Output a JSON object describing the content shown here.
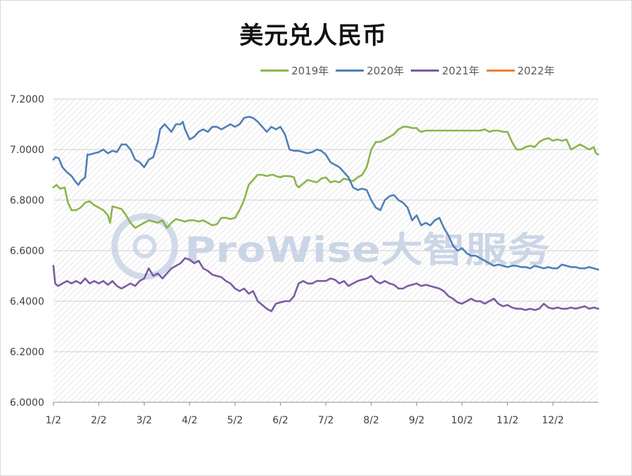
{
  "colors": {
    "s2019": "#8ab54a",
    "s2020": "#4f7fb8",
    "s2021": "#7b5ba3",
    "s2022": "#ed7d31"
  },
  "watermark": "ProWise大智服务",
  "chart_data": {
    "type": "line",
    "title": "美元兑人民币",
    "xlabel": "",
    "ylabel": "",
    "ylim": [
      6.0,
      7.2
    ],
    "yticks": [
      "6.0000",
      "6.2000",
      "6.4000",
      "6.6000",
      "6.8000",
      "7.0000",
      "7.2000"
    ],
    "xticks": [
      "1/2",
      "2/2",
      "3/2",
      "4/2",
      "5/2",
      "6/2",
      "7/2",
      "8/2",
      "9/2",
      "10/2",
      "11/2",
      "12/2"
    ],
    "x_domain": [
      0,
      12
    ],
    "x_unit": "month (0 = Jan 2, 12 = end of Dec)",
    "grid": true,
    "legend_position": "top",
    "series": [
      {
        "name": "2019年",
        "color_key": "s2019",
        "x": [
          0,
          0.07,
          0.15,
          0.25,
          0.32,
          0.4,
          0.5,
          0.6,
          0.7,
          0.8,
          0.9,
          1.0,
          1.1,
          1.2,
          1.25,
          1.3,
          1.4,
          1.5,
          1.6,
          1.7,
          1.8,
          1.9,
          2.0,
          2.1,
          2.2,
          2.3,
          2.4,
          2.5,
          2.6,
          2.7,
          2.8,
          2.9,
          3.0,
          3.1,
          3.2,
          3.3,
          3.4,
          3.5,
          3.6,
          3.7,
          3.8,
          3.9,
          4.0,
          4.1,
          4.2,
          4.3,
          4.4,
          4.5,
          4.6,
          4.7,
          4.8,
          4.85,
          4.9,
          5.0,
          5.05,
          5.1,
          5.2,
          5.3,
          5.35,
          5.4,
          5.5,
          5.6,
          5.7,
          5.8,
          5.9,
          6.0,
          6.1,
          6.2,
          6.3,
          6.4,
          6.5,
          6.6,
          6.7,
          6.8,
          6.9,
          7.0,
          7.1,
          7.2,
          7.3,
          7.4,
          7.5,
          7.6,
          7.7,
          7.8,
          7.9,
          8.0,
          8.05,
          8.1,
          8.2,
          8.3,
          8.4,
          8.5,
          8.6,
          8.7,
          8.8,
          8.9,
          9.0,
          9.1,
          9.2,
          9.3,
          9.4,
          9.5,
          9.6,
          9.7,
          9.8,
          9.9,
          10.0,
          10.1,
          10.2,
          10.3,
          10.4,
          10.5,
          10.6,
          10.7,
          10.8,
          10.9,
          11.0,
          11.1,
          11.2,
          11.3,
          11.4,
          11.5,
          11.6,
          11.7,
          11.8,
          11.9,
          11.95,
          12.0
        ],
        "y": [
          6.85,
          6.86,
          6.845,
          6.85,
          6.79,
          6.76,
          6.76,
          6.77,
          6.79,
          6.795,
          6.78,
          6.77,
          6.76,
          6.74,
          6.71,
          6.775,
          6.77,
          6.765,
          6.74,
          6.71,
          6.69,
          6.7,
          6.71,
          6.72,
          6.715,
          6.71,
          6.72,
          6.69,
          6.71,
          6.725,
          6.72,
          6.715,
          6.72,
          6.72,
          6.715,
          6.72,
          6.71,
          6.7,
          6.705,
          6.73,
          6.73,
          6.725,
          6.73,
          6.76,
          6.8,
          6.86,
          6.88,
          6.9,
          6.9,
          6.895,
          6.9,
          6.9,
          6.895,
          6.89,
          6.895,
          6.895,
          6.895,
          6.89,
          6.86,
          6.85,
          6.865,
          6.88,
          6.875,
          6.87,
          6.885,
          6.89,
          6.87,
          6.875,
          6.87,
          6.885,
          6.88,
          6.875,
          6.89,
          6.9,
          6.93,
          7.0,
          7.03,
          7.03,
          7.04,
          7.05,
          7.06,
          7.08,
          7.09,
          7.09,
          7.085,
          7.085,
          7.075,
          7.07,
          7.075,
          7.075,
          7.075,
          7.075,
          7.075,
          7.075,
          7.075,
          7.075,
          7.075,
          7.075,
          7.075,
          7.075,
          7.075,
          7.08,
          7.07,
          7.075,
          7.075,
          7.07,
          7.07,
          7.03,
          7.0,
          7.0,
          7.01,
          7.015,
          7.01,
          7.03,
          7.04,
          7.045,
          7.035,
          7.04,
          7.035,
          7.04,
          7.0,
          7.01,
          7.02,
          7.01,
          7.0,
          7.01,
          6.985,
          6.98
        ],
        "clip_last": 11.97
      },
      {
        "name": "2020年",
        "color_key": "s2020",
        "x": [
          0,
          0.05,
          0.12,
          0.2,
          0.3,
          0.4,
          0.5,
          0.55,
          0.6,
          0.7,
          0.75,
          0.8,
          0.9,
          1.0,
          1.1,
          1.2,
          1.3,
          1.4,
          1.5,
          1.6,
          1.7,
          1.8,
          1.9,
          2.0,
          2.1,
          2.2,
          2.3,
          2.35,
          2.45,
          2.5,
          2.6,
          2.7,
          2.8,
          2.85,
          2.9,
          3.0,
          3.1,
          3.2,
          3.3,
          3.4,
          3.5,
          3.6,
          3.7,
          3.8,
          3.9,
          4.0,
          4.1,
          4.2,
          4.3,
          4.4,
          4.5,
          4.6,
          4.7,
          4.8,
          4.9,
          5.0,
          5.1,
          5.2,
          5.3,
          5.4,
          5.5,
          5.6,
          5.7,
          5.8,
          5.9,
          6.0,
          6.1,
          6.2,
          6.3,
          6.4,
          6.5,
          6.6,
          6.7,
          6.8,
          6.9,
          7.0,
          7.1,
          7.2,
          7.3,
          7.4,
          7.5,
          7.6,
          7.7,
          7.8,
          7.9,
          8.0,
          8.1,
          8.2,
          8.3,
          8.4,
          8.5,
          8.6,
          8.7,
          8.8,
          8.9,
          9.0,
          9.1,
          9.2,
          9.3,
          9.4,
          9.5,
          9.6,
          9.7,
          9.8,
          9.9,
          10.0,
          10.1,
          10.2,
          10.3,
          10.4,
          10.5,
          10.6,
          10.7,
          10.8,
          10.9,
          11.0,
          11.1,
          11.2,
          11.3,
          11.4,
          11.5,
          11.6,
          11.7,
          11.8,
          11.9,
          12.0
        ],
        "y": [
          6.96,
          6.97,
          6.965,
          6.93,
          6.91,
          6.895,
          6.87,
          6.86,
          6.875,
          6.89,
          6.98,
          6.98,
          6.985,
          6.99,
          7.0,
          6.985,
          6.995,
          6.99,
          7.02,
          7.02,
          7.0,
          6.96,
          6.95,
          6.93,
          6.96,
          6.97,
          7.03,
          7.08,
          7.1,
          7.09,
          7.07,
          7.1,
          7.1,
          7.11,
          7.08,
          7.04,
          7.05,
          7.07,
          7.08,
          7.07,
          7.09,
          7.09,
          7.08,
          7.09,
          7.1,
          7.09,
          7.1,
          7.125,
          7.13,
          7.125,
          7.11,
          7.09,
          7.07,
          7.09,
          7.08,
          7.09,
          7.06,
          7.0,
          6.995,
          6.995,
          6.99,
          6.985,
          6.99,
          7.0,
          6.995,
          6.98,
          6.95,
          6.94,
          6.93,
          6.91,
          6.89,
          6.85,
          6.84,
          6.845,
          6.84,
          6.8,
          6.77,
          6.76,
          6.8,
          6.815,
          6.82,
          6.8,
          6.79,
          6.77,
          6.72,
          6.74,
          6.7,
          6.71,
          6.7,
          6.72,
          6.73,
          6.69,
          6.66,
          6.62,
          6.6,
          6.61,
          6.59,
          6.58,
          6.58,
          6.57,
          6.56,
          6.55,
          6.54,
          6.545,
          6.54,
          6.535,
          6.54,
          6.54,
          6.535,
          6.535,
          6.53,
          6.54,
          6.535,
          6.53,
          6.535,
          6.53,
          6.53,
          6.545,
          6.54,
          6.535,
          6.535,
          6.53,
          6.53,
          6.535,
          6.53,
          6.525
        ]
      },
      {
        "name": "2021年",
        "color_key": "s2021",
        "x": [
          0,
          0.04,
          0.1,
          0.2,
          0.3,
          0.4,
          0.5,
          0.6,
          0.7,
          0.8,
          0.9,
          1.0,
          1.1,
          1.2,
          1.3,
          1.4,
          1.5,
          1.6,
          1.7,
          1.8,
          1.9,
          2.0,
          2.1,
          2.2,
          2.3,
          2.4,
          2.5,
          2.6,
          2.7,
          2.8,
          2.9,
          3.0,
          3.1,
          3.2,
          3.3,
          3.4,
          3.5,
          3.6,
          3.7,
          3.8,
          3.9,
          4.0,
          4.1,
          4.2,
          4.3,
          4.4,
          4.5,
          4.6,
          4.7,
          4.8,
          4.9,
          5.0,
          5.1,
          5.2,
          5.3,
          5.4,
          5.5,
          5.6,
          5.7,
          5.8,
          5.9,
          6.0,
          6.1,
          6.2,
          6.3,
          6.4,
          6.5,
          6.6,
          6.7,
          6.8,
          6.9,
          7.0,
          7.1,
          7.2,
          7.3,
          7.4,
          7.5,
          7.6,
          7.7,
          7.8,
          7.9,
          8.0,
          8.1,
          8.2,
          8.3,
          8.4,
          8.5,
          8.6,
          8.7,
          8.8,
          8.9,
          9.0,
          9.1,
          9.2,
          9.3,
          9.4,
          9.5,
          9.6,
          9.7,
          9.8,
          9.9,
          10.0,
          10.1,
          10.2,
          10.3,
          10.4,
          10.5,
          10.6,
          10.7,
          10.8,
          10.9,
          11.0,
          11.1,
          11.2,
          11.3,
          11.4,
          11.5,
          11.6,
          11.7,
          11.8,
          11.9,
          12.0
        ],
        "y": [
          6.54,
          6.47,
          6.46,
          6.47,
          6.48,
          6.47,
          6.48,
          6.47,
          6.49,
          6.47,
          6.48,
          6.47,
          6.48,
          6.465,
          6.48,
          6.46,
          6.45,
          6.46,
          6.47,
          6.46,
          6.48,
          6.49,
          6.53,
          6.5,
          6.51,
          6.49,
          6.51,
          6.53,
          6.54,
          6.55,
          6.57,
          6.565,
          6.55,
          6.56,
          6.53,
          6.52,
          6.505,
          6.5,
          6.495,
          6.48,
          6.47,
          6.45,
          6.44,
          6.45,
          6.43,
          6.44,
          6.4,
          6.385,
          6.37,
          6.36,
          6.39,
          6.395,
          6.4,
          6.4,
          6.42,
          6.47,
          6.48,
          6.47,
          6.47,
          6.48,
          6.48,
          6.48,
          6.49,
          6.485,
          6.47,
          6.48,
          6.46,
          6.47,
          6.48,
          6.485,
          6.49,
          6.5,
          6.48,
          6.47,
          6.48,
          6.47,
          6.465,
          6.45,
          6.45,
          6.46,
          6.465,
          6.47,
          6.46,
          6.465,
          6.46,
          6.455,
          6.45,
          6.44,
          6.42,
          6.41,
          6.395,
          6.39,
          6.4,
          6.41,
          6.4,
          6.4,
          6.39,
          6.4,
          6.41,
          6.39,
          6.38,
          6.385,
          6.375,
          6.37,
          6.37,
          6.365,
          6.37,
          6.365,
          6.37,
          6.39,
          6.375,
          6.37,
          6.375,
          6.37,
          6.37,
          6.375,
          6.37,
          6.375,
          6.38,
          6.37,
          6.375,
          6.37
        ]
      },
      {
        "name": "2022年",
        "color_key": "s2022",
        "x": [],
        "y": []
      }
    ]
  }
}
